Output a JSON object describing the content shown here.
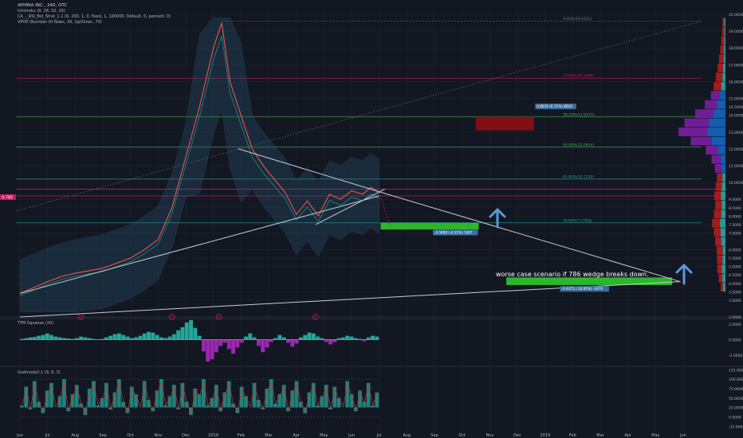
{
  "header": {
    "symbol_line": "APHRIA INC., 240, OTC",
    "indicators": [
      "Ichimoku (9, 26, 52, 26)",
      "CA_-_RSI_Bol_Strat_1.1 (6, 200, 1, 0, fixed, 1, 100000, Default, 0, percent, 0)",
      "VPVR (Number Of Rows, 30, Up/Down, 70)"
    ]
  },
  "colors": {
    "background": "#131722",
    "grid": "#1f2430",
    "axis_text": "#b2b5be",
    "fib_red": "#c2185b",
    "fib_green": "#4caf50",
    "fib_teal": "#26a69a",
    "trend_line": "#c7ccd6",
    "zone_green": "#2ec42e",
    "zone_red": "#8b0f14",
    "arrow_blue": "#5b9bd5",
    "vp_up": "#2ba7a2",
    "vp_down": "#b71c1c",
    "vp_value_area": "#7b1fa2",
    "osc_teal": "#26a69a",
    "osc_magenta": "#9c27b0",
    "osc_red": "#d32f2f"
  },
  "chart_data": [
    {
      "type": "line",
      "panel": "price",
      "x_axis_labels": [
        "Jun",
        "Jul",
        "Aug",
        "Sep",
        "Oct",
        "Nov",
        "Dec",
        "2018",
        "Feb",
        "Mar",
        "Apr",
        "May",
        "Jun",
        "Jul",
        "Aug",
        "Sep",
        "Oct",
        "Nov",
        "Dec",
        "2019",
        "Feb",
        "Mar",
        "Apr",
        "May",
        "Jun"
      ],
      "y_ticks": [
        2.0,
        3.0,
        3.5,
        4.0,
        4.5,
        5.0,
        5.5,
        6.0,
        7.0,
        7.5,
        8.0,
        8.5,
        9.0,
        10.0,
        11.0,
        12.0,
        13.0,
        14.0,
        14.5,
        15.0,
        16.0,
        17.0,
        18.0,
        19.0,
        20.0
      ],
      "ylim": [
        2.0,
        20.0
      ],
      "current_price_label": "9.785",
      "price_series": [
        {
          "t": 0.0,
          "v": 3.4
        },
        {
          "t": 1.0,
          "v": 4.1
        },
        {
          "t": 1.5,
          "v": 4.4
        },
        {
          "t": 2.0,
          "v": 4.6
        },
        {
          "t": 3.0,
          "v": 4.9
        },
        {
          "t": 4.0,
          "v": 5.5
        },
        {
          "t": 4.5,
          "v": 6.0
        },
        {
          "t": 5.0,
          "v": 6.6
        },
        {
          "t": 5.5,
          "v": 8.5
        },
        {
          "t": 6.0,
          "v": 11.5
        },
        {
          "t": 6.5,
          "v": 14.5
        },
        {
          "t": 7.0,
          "v": 18.0
        },
        {
          "t": 7.3,
          "v": 19.5
        },
        {
          "t": 7.6,
          "v": 16.0
        },
        {
          "t": 8.0,
          "v": 14.0
        },
        {
          "t": 8.4,
          "v": 12.0
        },
        {
          "t": 8.8,
          "v": 11.0
        },
        {
          "t": 9.2,
          "v": 10.2
        },
        {
          "t": 9.6,
          "v": 9.4
        },
        {
          "t": 10.0,
          "v": 8.1
        },
        {
          "t": 10.4,
          "v": 8.9
        },
        {
          "t": 10.8,
          "v": 8.0
        },
        {
          "t": 11.2,
          "v": 9.3
        },
        {
          "t": 11.6,
          "v": 9.0
        },
        {
          "t": 12.0,
          "v": 9.5
        },
        {
          "t": 12.4,
          "v": 9.3
        },
        {
          "t": 12.7,
          "v": 9.7
        },
        {
          "t": 13.0,
          "v": 9.4
        }
      ],
      "fib_levels": [
        {
          "label": "0.00%(19.6123)",
          "value": 19.6,
          "color": "#787b86"
        },
        {
          "label": "23.60%(16.1686)",
          "value": 16.2,
          "color": "#c2185b"
        },
        {
          "label": "38.20%(13.9173)",
          "value": 13.9,
          "color": "#4caf50"
        },
        {
          "label": "50.00%(12.0654)",
          "value": 12.1,
          "color": "#4caf50"
        },
        {
          "label": "61.80%(10.2135)",
          "value": 10.2,
          "color": "#26a69a"
        },
        {
          "label": "78.60%(7.5769)",
          "value": 7.6,
          "color": "#26a69a"
        }
      ],
      "horizontal_red_lines": [
        9.6,
        9.2
      ],
      "zones": [
        {
          "kind": "green",
          "x_start": 13.05,
          "x_end": 16.6,
          "y_top": 7.6,
          "y_bottom": 7.2
        },
        {
          "kind": "red",
          "x_start": 16.5,
          "x_end": 18.6,
          "y_top": 13.9,
          "y_bottom": 13.1
        },
        {
          "kind": "green",
          "x_start": 17.6,
          "x_end": 23.6,
          "y_top": 4.35,
          "y_bottom": 3.9
        }
      ],
      "measure_labels": [
        {
          "text": "0.8635 (6.71%) 8819",
          "x": 18.7,
          "y": 14.45
        },
        {
          "text": "-0.5889 (-6.51%) 1687",
          "x": 15.0,
          "y": 6.95
        },
        {
          "text": "-0.4475 (-16.85%) -4476",
          "x": 19.6,
          "y": 3.6
        }
      ],
      "annotation": "worse case scenario if 786 wedge breaks down.",
      "event_markers": [
        "E",
        "E",
        "E",
        "E"
      ]
    },
    {
      "type": "bar",
      "panel": "oscillator",
      "title": "TTM Squeeze (20)",
      "y_ticks": [
        2.0,
        0.0,
        -2.0
      ],
      "ylim": [
        -3.2,
        2.6
      ],
      "values": [
        0.1,
        0.2,
        0.3,
        0.35,
        0.5,
        0.6,
        0.8,
        0.6,
        0.4,
        0.3,
        0.2,
        0.15,
        0.1,
        0.2,
        0.4,
        0.3,
        0.2,
        0.1,
        0.05,
        0.1,
        0.3,
        0.5,
        0.7,
        0.8,
        0.6,
        0.4,
        0.2,
        0.3,
        0.5,
        0.8,
        1.0,
        0.9,
        0.6,
        0.3,
        0.2,
        0.4,
        0.7,
        1.2,
        1.6,
        2.2,
        2.5,
        1.5,
        0.5,
        -1.5,
        -2.8,
        -2.5,
        -1.6,
        -0.8,
        -0.4,
        -1.2,
        -1.8,
        -1.0,
        -0.4,
        0.4,
        0.8,
        0.3,
        -0.8,
        -1.6,
        -1.0,
        -0.3,
        0.2,
        0.6,
        0.3,
        -0.4,
        -0.9,
        -0.5,
        0.3,
        0.6,
        0.9,
        0.8,
        0.4,
        0.2,
        -0.3,
        -0.6,
        -0.3,
        0.2,
        0.3,
        0.5,
        0.4,
        0.2,
        0.1,
        -0.2,
        0.3,
        0.5,
        0.4
      ]
    },
    {
      "type": "line",
      "panel": "oscillator",
      "title": "Godmode2.1 (9, 6, 3)",
      "y_ticks": [
        125.0,
        100.0,
        75.0,
        50.0,
        25.0,
        0.0,
        -25.0
      ],
      "ylim": [
        -35,
        130
      ],
      "values": [
        30,
        80,
        20,
        95,
        40,
        10,
        70,
        90,
        25,
        55,
        100,
        15,
        60,
        85,
        35,
        5,
        75,
        95,
        30,
        50,
        90,
        20,
        65,
        100,
        40,
        10,
        80,
        60,
        25,
        95,
        45,
        15,
        70,
        100,
        30,
        55,
        85,
        20,
        90,
        40,
        5,
        75,
        60,
        100,
        30,
        50,
        85,
        15,
        65,
        95,
        35,
        10,
        80,
        55,
        25,
        90,
        45,
        20,
        75,
        100,
        35,
        60,
        85,
        15,
        70,
        95,
        40,
        10,
        65,
        90,
        30,
        55,
        85,
        20,
        80,
        50,
        25,
        95,
        60,
        15,
        70,
        40,
        90,
        30,
        65
      ]
    }
  ],
  "volume_profile": {
    "up": [
      8,
      10,
      12,
      10,
      9,
      14,
      16,
      18,
      14,
      12,
      15,
      12,
      10,
      13,
      16,
      25,
      45,
      60,
      55,
      40,
      28,
      18,
      14,
      10,
      8,
      6,
      5,
      4,
      3,
      4
    ],
    "down": [
      8,
      12,
      15,
      18,
      20,
      20,
      22,
      26,
      24,
      22,
      22,
      20,
      18,
      22,
      30,
      40,
      70,
      95,
      80,
      60,
      40,
      30,
      25,
      22,
      18,
      15,
      12,
      10,
      8,
      6
    ]
  }
}
